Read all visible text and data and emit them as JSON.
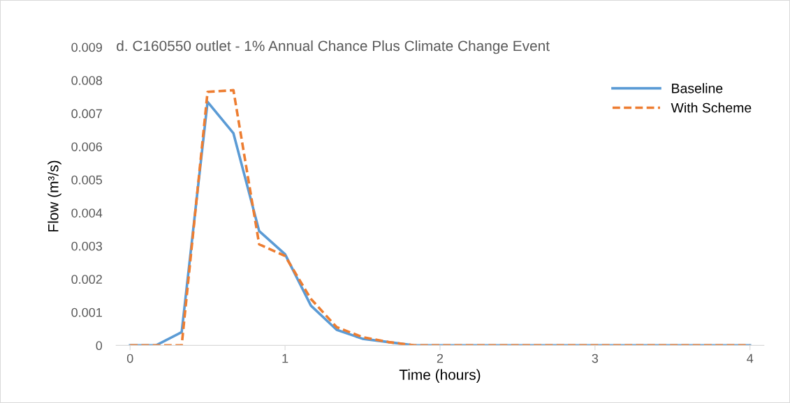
{
  "chart_data": {
    "type": "line",
    "title": "d. C160550 outlet - 1% Annual Chance Plus Climate Change Event",
    "xlabel": "Time (hours)",
    "ylabel": "Flow (m³/s)",
    "x": [
      0,
      0.167,
      0.333,
      0.5,
      0.667,
      0.833,
      1,
      1.167,
      1.333,
      1.5,
      1.667,
      1.833,
      2,
      2.167,
      2.333,
      2.5,
      2.667,
      2.833,
      3,
      3.167,
      3.333,
      3.5,
      3.667,
      3.833,
      4
    ],
    "series": [
      {
        "name": "Baseline",
        "color": "#5b9bd5",
        "line_style": "solid",
        "values": [
          0,
          0,
          0.0004,
          0.00735,
          0.0064,
          0.00345,
          0.00275,
          0.0012,
          0.00047,
          0.0002,
          0.0001,
          0,
          0,
          0,
          0,
          0,
          0,
          0,
          0,
          0,
          0,
          0,
          0,
          0,
          0
        ]
      },
      {
        "name": "With Scheme",
        "color": "#ed7d31",
        "line_style": "dashed",
        "values": [
          0,
          0,
          0,
          0.00765,
          0.0077,
          0.00305,
          0.0027,
          0.0014,
          0.00055,
          0.00025,
          0.0001,
          0,
          0,
          0,
          0,
          0,
          0,
          0,
          0,
          0,
          0,
          0,
          0,
          0,
          0
        ]
      }
    ],
    "xlim": [
      -0.09,
      4.09
    ],
    "ylim": [
      0,
      0.009
    ],
    "xticks": [
      0,
      1,
      2,
      3,
      4
    ],
    "yticks": [
      0,
      0.001,
      0.002,
      0.003,
      0.004,
      0.005,
      0.006,
      0.007,
      0.008,
      0.009
    ],
    "grid": false,
    "legend": "top right",
    "marker": "none"
  }
}
